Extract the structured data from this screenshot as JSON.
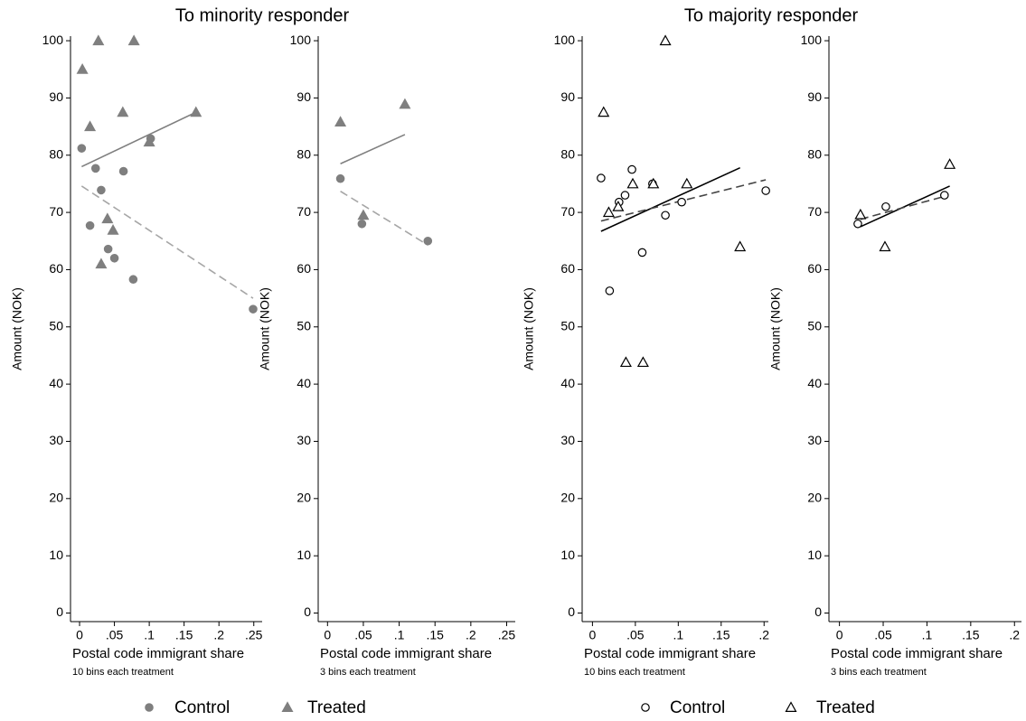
{
  "chart_data": [
    {
      "type": "scatter",
      "title": "To minority responder",
      "xlabel": "Postal code immigrant share",
      "ylabel": "Amount (NOK)",
      "note": "10 bins each treatment",
      "xlim": [
        -0.013,
        0.262
      ],
      "ylim": [
        -1.5,
        100.8
      ],
      "xticks": [
        0,
        {
          "value": 0.05,
          "label": ".05"
        },
        {
          "value": 0.1,
          "label": ".1"
        },
        {
          "value": 0.15,
          "label": ".15"
        },
        {
          "value": 0.2,
          "label": ".2"
        },
        {
          "value": 0.25,
          "label": ".25"
        }
      ],
      "yticks": [
        0,
        10,
        20,
        30,
        40,
        50,
        60,
        70,
        80,
        90,
        100
      ],
      "legend": true,
      "series": [
        {
          "name": "Control",
          "color": "#7f7f7f",
          "marker": "circle",
          "filled": true,
          "x": [
            0.003,
            0.015,
            0.023,
            0.031,
            0.041,
            0.05,
            0.063,
            0.077,
            0.102,
            0.249
          ],
          "values": [
            81.2,
            67.7,
            77.7,
            73.9,
            63.6,
            62,
            77.2,
            58.3,
            82.9,
            53.1
          ]
        },
        {
          "name": "Treated",
          "color": "#7f7f7f",
          "marker": "triangle",
          "filled": true,
          "x": [
            0.004,
            0.015,
            0.027,
            0.031,
            0.04,
            0.048,
            0.062,
            0.078,
            0.1,
            0.167
          ],
          "values": [
            95,
            85,
            100,
            61,
            68.9,
            66.9,
            87.5,
            100,
            82.3,
            87.5
          ]
        }
      ],
      "fits": [
        {
          "color": "#7f7f7f",
          "dashed": false,
          "x": [
            0.003,
            0.167
          ],
          "values": [
            78,
            87.5
          ]
        },
        {
          "color": "#a6a6a6",
          "dashed": true,
          "x": [
            0.003,
            0.249
          ],
          "values": [
            74.6,
            55
          ]
        }
      ]
    },
    {
      "type": "scatter",
      "xlabel": "Postal code immigrant share",
      "ylabel": "Amount (NOK)",
      "note": "3 bins each treatment",
      "xlim": [
        -0.013,
        0.262
      ],
      "ylim": [
        -1.5,
        100.8
      ],
      "xticks": [
        0,
        {
          "value": 0.05,
          "label": ".05"
        },
        {
          "value": 0.1,
          "label": ".1"
        },
        {
          "value": 0.15,
          "label": ".15"
        },
        {
          "value": 0.2,
          "label": ".2"
        },
        {
          "value": 0.25,
          "label": ".25"
        }
      ],
      "yticks": [
        0,
        10,
        20,
        30,
        40,
        50,
        60,
        70,
        80,
        90,
        100
      ],
      "legend": false,
      "series": [
        {
          "color": "#7f7f7f",
          "marker": "circle",
          "filled": true,
          "x": [
            0.018,
            0.048,
            0.14
          ],
          "values": [
            75.9,
            68,
            65
          ]
        },
        {
          "color": "#7f7f7f",
          "marker": "triangle",
          "filled": true,
          "x": [
            0.018,
            0.05,
            0.108
          ],
          "values": [
            85.8,
            69.5,
            88.9
          ]
        }
      ],
      "fits": [
        {
          "color": "#7f7f7f",
          "dashed": false,
          "x": [
            0.018,
            0.108
          ],
          "values": [
            78.5,
            83.6
          ]
        },
        {
          "color": "#a6a6a6",
          "dashed": true,
          "x": [
            0.018,
            0.14
          ],
          "values": [
            73.7,
            64.3
          ]
        }
      ]
    },
    {
      "type": "scatter",
      "title": "To majority responder",
      "xlabel": "Postal code immigrant share",
      "ylabel": "Amount (NOK)",
      "note": "10 bins each treatment",
      "xlim": [
        -0.012,
        0.205
      ],
      "ylim": [
        -1.5,
        100.8
      ],
      "xticks": [
        0,
        {
          "value": 0.05,
          "label": ".05"
        },
        {
          "value": 0.1,
          "label": ".1"
        },
        {
          "value": 0.15,
          "label": ".15"
        },
        {
          "value": 0.2,
          "label": ".2"
        }
      ],
      "yticks": [
        0,
        10,
        20,
        30,
        40,
        50,
        60,
        70,
        80,
        90,
        100
      ],
      "legend": true,
      "series": [
        {
          "name": "Control",
          "color": "#000000",
          "marker": "circle",
          "filled": false,
          "x": [
            0.01,
            0.02,
            0.031,
            0.038,
            0.046,
            0.058,
            0.07,
            0.085,
            0.104,
            0.202
          ],
          "values": [
            76,
            56.3,
            71.8,
            73,
            77.5,
            63,
            75,
            69.5,
            71.8,
            73.8
          ]
        },
        {
          "name": "Treated",
          "color": "#000000",
          "marker": "triangle",
          "filled": false,
          "x": [
            0.013,
            0.019,
            0.03,
            0.039,
            0.047,
            0.059,
            0.071,
            0.085,
            0.11,
            0.172
          ],
          "values": [
            87.5,
            70,
            71,
            43.8,
            75,
            43.8,
            75,
            100,
            75,
            64
          ]
        }
      ],
      "fits": [
        {
          "color": "#000000",
          "dashed": false,
          "x": [
            0.01,
            0.172
          ],
          "values": [
            66.7,
            77.8
          ]
        },
        {
          "color": "#444444",
          "dashed": true,
          "x": [
            0.01,
            0.202
          ],
          "values": [
            68.5,
            75.7
          ]
        }
      ]
    },
    {
      "type": "scatter",
      "xlabel": "Postal code immigrant share",
      "ylabel": "Amount (NOK)",
      "note": "3 bins each treatment",
      "xlim": [
        -0.012,
        0.208
      ],
      "ylim": [
        -1.5,
        100.8
      ],
      "xticks": [
        0,
        {
          "value": 0.05,
          "label": ".05"
        },
        {
          "value": 0.1,
          "label": ".1"
        },
        {
          "value": 0.15,
          "label": ".15"
        },
        {
          "value": 0.2,
          "label": ".2"
        }
      ],
      "yticks": [
        0,
        10,
        20,
        30,
        40,
        50,
        60,
        70,
        80,
        90,
        100
      ],
      "legend": false,
      "series": [
        {
          "color": "#000000",
          "marker": "circle",
          "filled": false,
          "x": [
            0.021,
            0.053,
            0.12
          ],
          "values": [
            68,
            71,
            73
          ]
        },
        {
          "color": "#000000",
          "marker": "triangle",
          "filled": false,
          "x": [
            0.024,
            0.052,
            0.126
          ],
          "values": [
            69.6,
            64,
            78.4
          ]
        }
      ],
      "fits": [
        {
          "color": "#000000",
          "dashed": false,
          "x": [
            0.024,
            0.126
          ],
          "values": [
            67.5,
            74.6
          ]
        },
        {
          "color": "#444444",
          "dashed": true,
          "x": [
            0.024,
            0.12
          ],
          "values": [
            68.8,
            72.8
          ]
        }
      ]
    }
  ]
}
